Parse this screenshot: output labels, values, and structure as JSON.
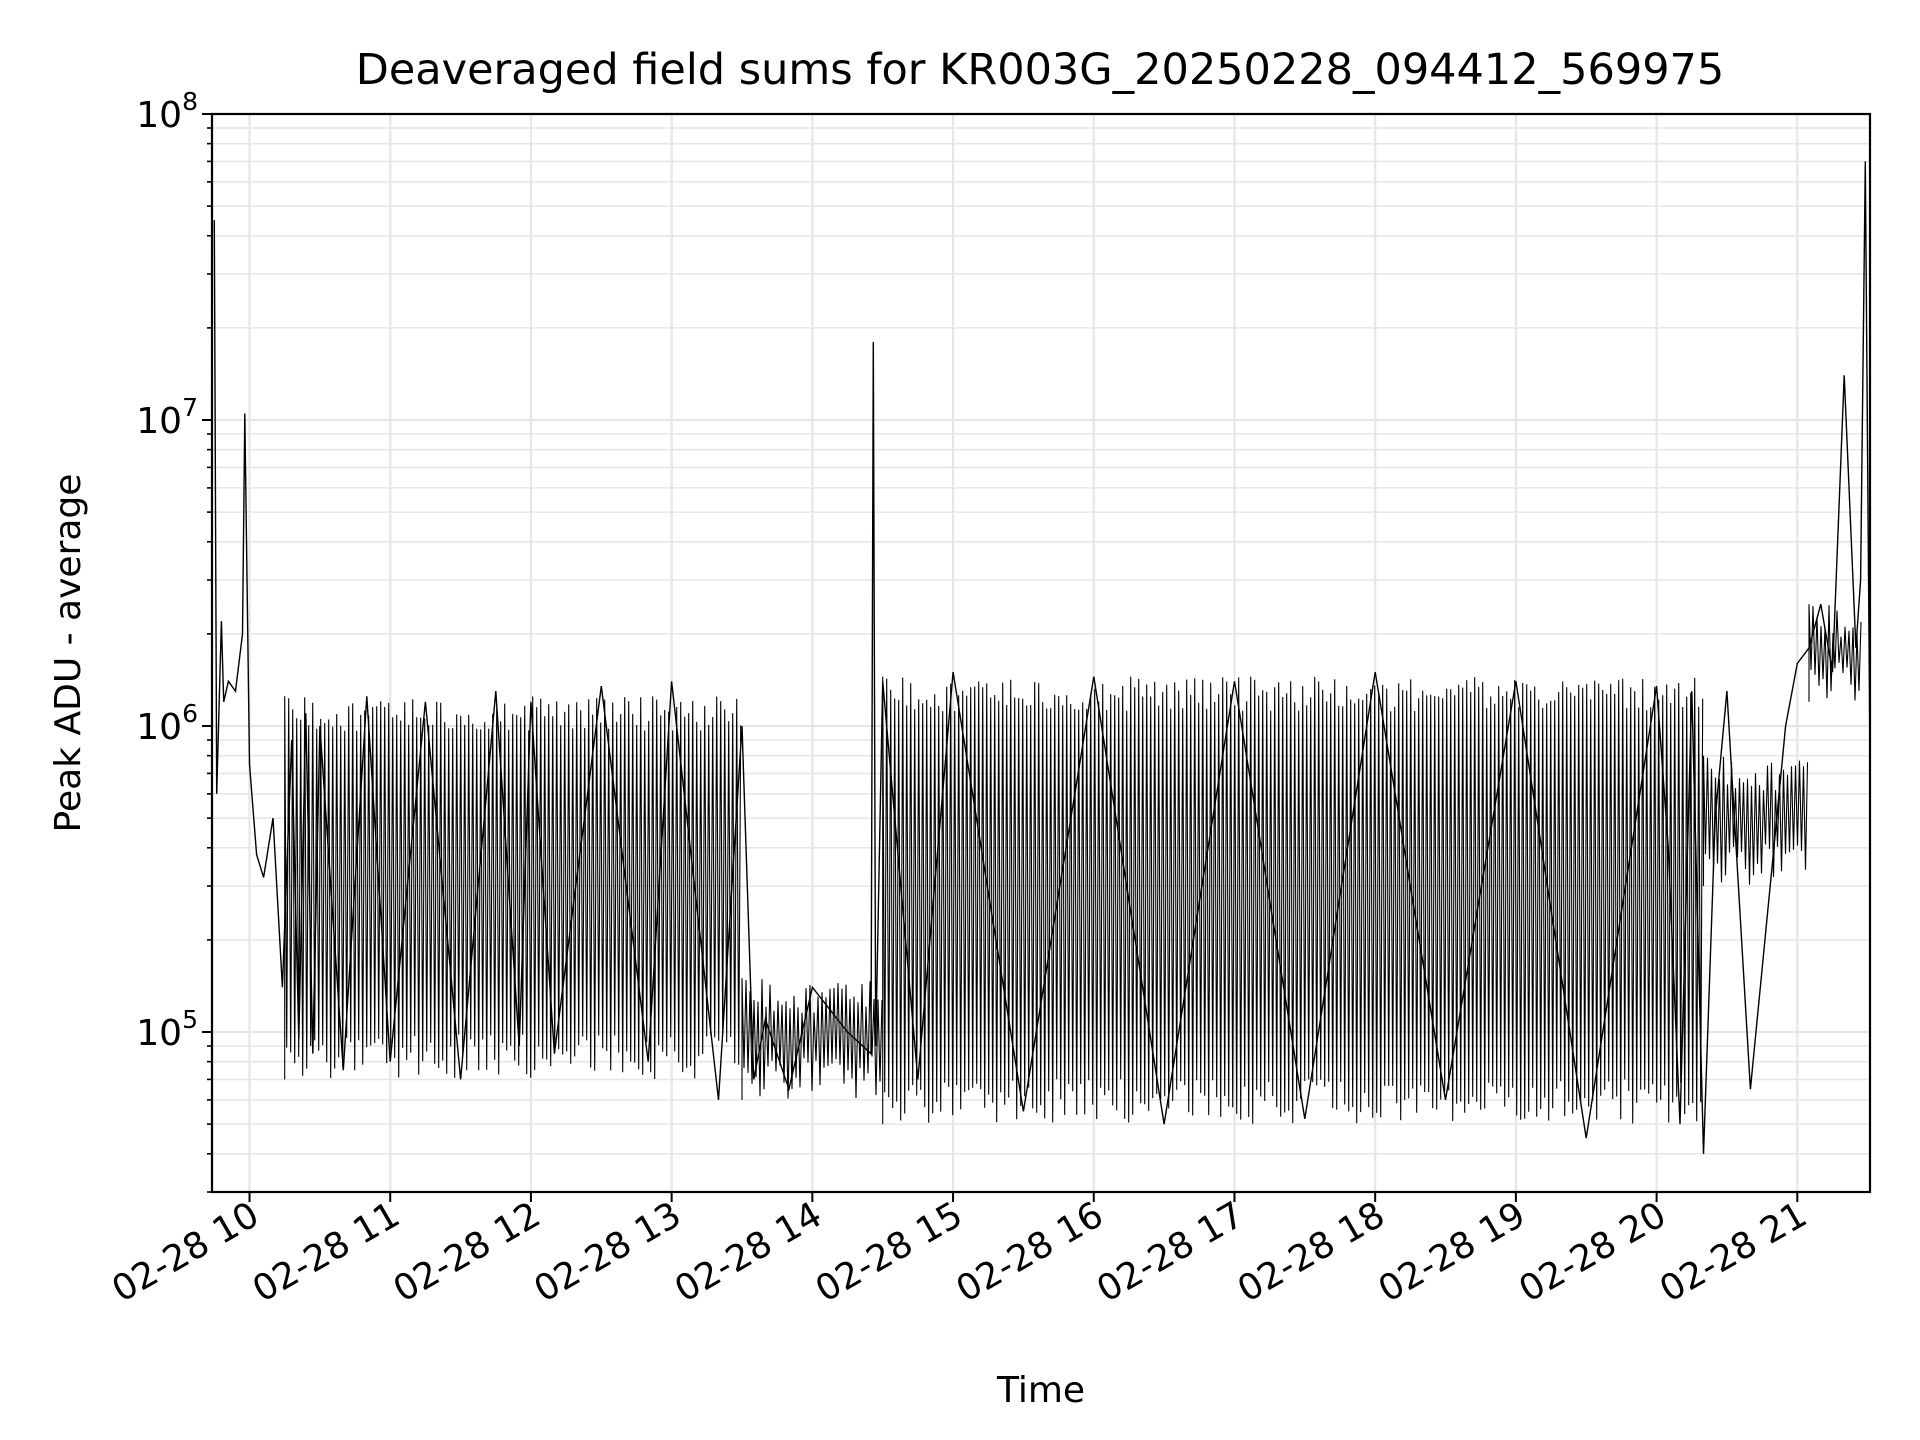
{
  "chart_data": {
    "type": "line",
    "title": "Deaveraged field sums for KR003G_20250228_094412_569975",
    "xlabel": "Time",
    "ylabel": "Peak ADU - average",
    "yscale": "log",
    "ylim": [
      30000,
      100000000
    ],
    "xlim": [
      "2025-02-28 09:44",
      "2025-02-28 21:31"
    ],
    "grid": true,
    "legend": "none",
    "line_color": "#000000",
    "x_ticks": [
      {
        "t": "2025-02-28 10:00",
        "label": "02-28 10"
      },
      {
        "t": "2025-02-28 11:00",
        "label": "02-28 11"
      },
      {
        "t": "2025-02-28 12:00",
        "label": "02-28 12"
      },
      {
        "t": "2025-02-28 13:00",
        "label": "02-28 13"
      },
      {
        "t": "2025-02-28 14:00",
        "label": "02-28 14"
      },
      {
        "t": "2025-02-28 15:00",
        "label": "02-28 15"
      },
      {
        "t": "2025-02-28 16:00",
        "label": "02-28 16"
      },
      {
        "t": "2025-02-28 17:00",
        "label": "02-28 17"
      },
      {
        "t": "2025-02-28 18:00",
        "label": "02-28 18"
      },
      {
        "t": "2025-02-28 19:00",
        "label": "02-28 19"
      },
      {
        "t": "2025-02-28 20:00",
        "label": "02-28 20"
      },
      {
        "t": "2025-02-28 21:00",
        "label": "02-28 21"
      }
    ],
    "y_ticks": [
      {
        "value": 100000,
        "base": "10",
        "exp": "5"
      },
      {
        "value": 1000000,
        "base": "10",
        "exp": "6"
      },
      {
        "value": 10000000,
        "base": "10",
        "exp": "7"
      },
      {
        "value": 100000000,
        "base": "10",
        "exp": "8"
      }
    ],
    "series": [
      {
        "x": [
          "2025-02-28 09:45",
          "2025-02-28 09:46",
          "2025-02-28 09:48",
          "2025-02-28 09:49",
          "2025-02-28 09:51",
          "2025-02-28 09:54",
          "2025-02-28 09:57",
          "2025-02-28 09:58",
          "2025-02-28 10:00",
          "2025-02-28 10:03",
          "2025-02-28 10:06",
          "2025-02-28 10:10",
          "2025-02-28 10:14",
          "2025-02-28 10:18",
          "2025-02-28 10:21",
          "2025-02-28 10:24",
          "2025-02-28 10:27",
          "2025-02-28 10:30",
          "2025-02-28 10:40",
          "2025-02-28 10:50",
          "2025-02-28 11:00",
          "2025-02-28 11:15",
          "2025-02-28 11:30",
          "2025-02-28 11:45",
          "2025-02-28 11:55",
          "2025-02-28 12:00",
          "2025-02-28 12:10",
          "2025-02-28 12:30",
          "2025-02-28 12:50",
          "2025-02-28 13:00",
          "2025-02-28 13:20",
          "2025-02-28 13:30",
          "2025-02-28 13:35",
          "2025-02-28 13:40",
          "2025-02-28 13:50",
          "2025-02-28 14:00",
          "2025-02-28 14:15",
          "2025-02-28 14:25",
          "2025-02-28 14:26",
          "2025-02-28 14:27",
          "2025-02-28 14:30",
          "2025-02-28 14:45",
          "2025-02-28 15:00",
          "2025-02-28 15:30",
          "2025-02-28 16:00",
          "2025-02-28 16:30",
          "2025-02-28 17:00",
          "2025-02-28 17:30",
          "2025-02-28 18:00",
          "2025-02-28 18:30",
          "2025-02-28 19:00",
          "2025-02-28 19:30",
          "2025-02-28 20:00",
          "2025-02-28 20:05",
          "2025-02-28 20:10",
          "2025-02-28 20:15",
          "2025-02-28 20:20",
          "2025-02-28 20:25",
          "2025-02-28 20:30",
          "2025-02-28 20:40",
          "2025-02-28 20:50",
          "2025-02-28 20:55",
          "2025-02-28 21:00",
          "2025-02-28 21:05",
          "2025-02-28 21:10",
          "2025-02-28 21:15",
          "2025-02-28 21:20",
          "2025-02-28 21:25",
          "2025-02-28 21:27",
          "2025-02-28 21:29",
          "2025-02-28 21:31"
        ],
        "y": [
          45000000,
          600000,
          2200000,
          1200000,
          1400000,
          1300000,
          2000000,
          10500000,
          750000,
          380000,
          320000,
          500000,
          140000,
          900000,
          95000,
          1100000,
          85000,
          1000000,
          75000,
          1250000,
          80000,
          1200000,
          70000,
          1300000,
          90000,
          1200000,
          85000,
          1350000,
          80000,
          1400000,
          60000,
          1000000,
          70000,
          110000,
          65000,
          140000,
          100000,
          85000,
          18000000,
          90000,
          1400000,
          70000,
          1500000,
          55000,
          1450000,
          50000,
          1400000,
          52000,
          1500000,
          60000,
          1400000,
          45000,
          1350000,
          400000,
          50000,
          1300000,
          40000,
          500000,
          1300000,
          65000,
          400000,
          1000000,
          1600000,
          1800000,
          2500000,
          1500000,
          14000000,
          1800000,
          3000000,
          70000000,
          750000
        ],
        "fill_envelope": {
          "segments": [
            {
              "start": "2025-02-28 10:15",
              "end": "2025-02-28 13:30",
              "low": 70000,
              "high": 1250000
            },
            {
              "start": "2025-02-28 13:30",
              "end": "2025-02-28 14:30",
              "low": 60000,
              "high": 150000
            },
            {
              "start": "2025-02-28 14:30",
              "end": "2025-02-28 20:20",
              "low": 50000,
              "high": 1450000
            },
            {
              "start": "2025-02-28 20:20",
              "end": "2025-02-28 21:05",
              "low": 300000,
              "high": 800000
            },
            {
              "start": "2025-02-28 21:05",
              "end": "2025-02-28 21:28",
              "low": 1200000,
              "high": 2500000
            }
          ]
        }
      }
    ]
  }
}
